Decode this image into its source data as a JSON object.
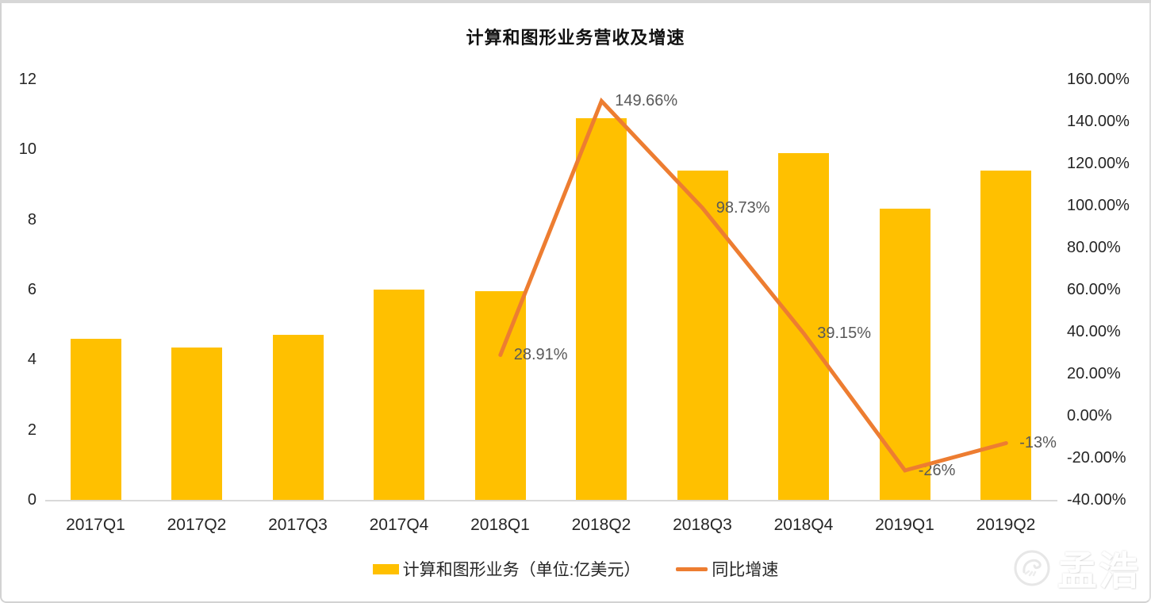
{
  "chart_data": {
    "type": "combo_bar_line",
    "title": "计算和图形业务营收及增速",
    "categories": [
      "2017Q1",
      "2017Q2",
      "2017Q3",
      "2017Q4",
      "2018Q1",
      "2018Q2",
      "2018Q3",
      "2018Q4",
      "2019Q1",
      "2019Q2"
    ],
    "series": [
      {
        "name": "计算和图形业务（单位:亿美元）",
        "type": "bar",
        "axis": "left",
        "color": "#FFC000",
        "values": [
          4.6,
          4.35,
          4.7,
          6.0,
          5.95,
          10.9,
          9.4,
          9.9,
          8.3,
          9.4
        ]
      },
      {
        "name": "同比增速",
        "type": "line",
        "axis": "right",
        "color": "#ED7D31",
        "values": [
          null,
          null,
          null,
          null,
          28.91,
          149.66,
          98.73,
          39.15,
          -26,
          -13
        ],
        "point_labels": [
          null,
          null,
          null,
          null,
          "28.91%",
          "149.66%",
          "98.73%",
          "39.15%",
          "-26%",
          "-13%"
        ]
      }
    ],
    "left_axis": {
      "min": 0,
      "max": 12,
      "step": 2,
      "ticks": [
        "12",
        "10",
        "8",
        "6",
        "4",
        "2",
        "0"
      ]
    },
    "right_axis": {
      "min": -40,
      "max": 160,
      "step": 20,
      "ticks": [
        "160.00%",
        "140.00%",
        "120.00%",
        "100.00%",
        "80.00%",
        "60.00%",
        "40.00%",
        "20.00%",
        "0.00%",
        "-20.00%",
        "-40.00%"
      ]
    },
    "grid": false,
    "legend_position": "bottom"
  },
  "colors": {
    "bar": "#FFC000",
    "line": "#ED7D31",
    "axis_line": "#d9d9d9",
    "label_text": "#595959"
  },
  "watermark": {
    "text": "孟浩",
    "logo": "hand-gesture-logo"
  }
}
